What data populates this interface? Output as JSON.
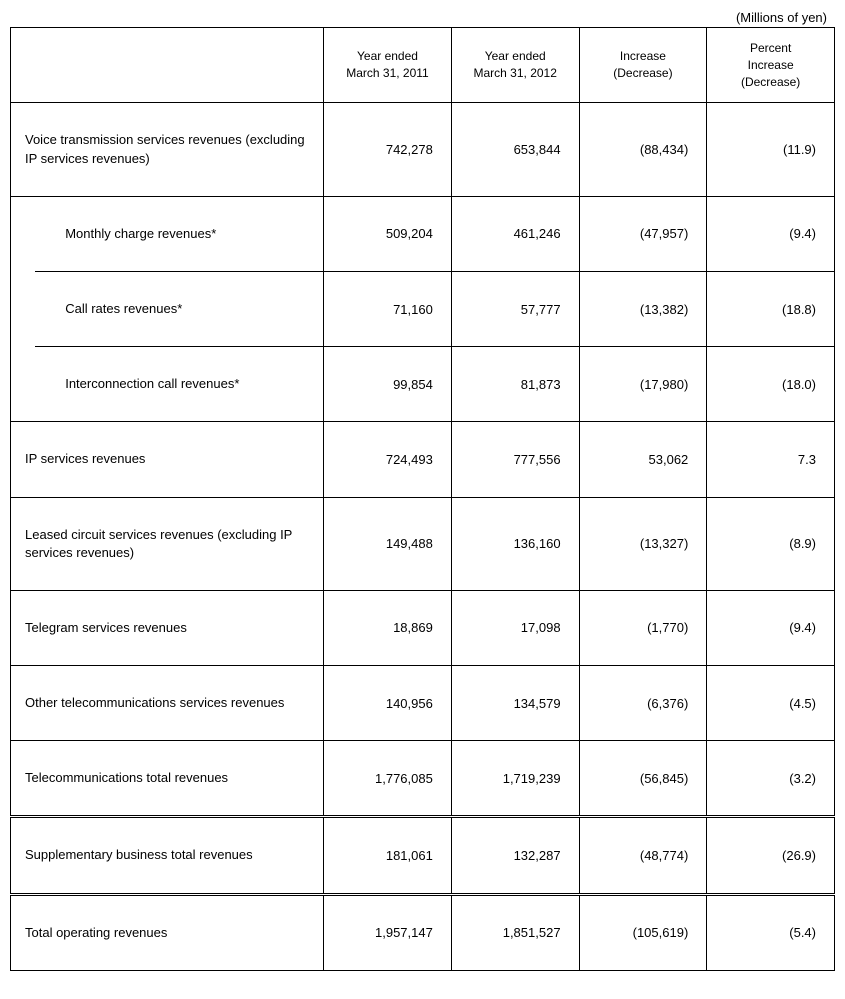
{
  "unit_label": "(Millions of yen)",
  "columns": {
    "c1": "Year ended\nMarch 31, 2011",
    "c2": "Year ended\nMarch 31, 2012",
    "c3": "Increase\n(Decrease)",
    "c4": "Percent\nIncrease\n(Decrease)"
  },
  "rows": {
    "r0": {
      "label": "Voice transmission services revenues (excluding IP services revenues)",
      "v1": "742,278",
      "v2": "653,844",
      "v3": "(88,434)",
      "v4": "(11.9)"
    },
    "r1": {
      "label": "Monthly charge revenues*",
      "v1": "509,204",
      "v2": "461,246",
      "v3": "(47,957)",
      "v4": "(9.4)"
    },
    "r2": {
      "label": "Call rates revenues*",
      "v1": "71,160",
      "v2": "57,777",
      "v3": "(13,382)",
      "v4": "(18.8)"
    },
    "r3": {
      "label": "Interconnection call revenues*",
      "v1": "99,854",
      "v2": "81,873",
      "v3": "(17,980)",
      "v4": "(18.0)"
    },
    "r4": {
      "label": "IP services revenues",
      "v1": "724,493",
      "v2": "777,556",
      "v3": "53,062",
      "v4": "7.3"
    },
    "r5": {
      "label": "Leased circuit services revenues (excluding IP services revenues)",
      "v1": "149,488",
      "v2": "136,160",
      "v3": "(13,327)",
      "v4": "(8.9)"
    },
    "r6": {
      "label": "Telegram services revenues",
      "v1": "18,869",
      "v2": "17,098",
      "v3": "(1,770)",
      "v4": "(9.4)"
    },
    "r7": {
      "label": "Other telecommunications services revenues",
      "v1": "140,956",
      "v2": "134,579",
      "v3": "(6,376)",
      "v4": "(4.5)"
    },
    "r8": {
      "label": "Telecommunications total revenues",
      "v1": "1,776,085",
      "v2": "1,719,239",
      "v3": "(56,845)",
      "v4": "(3.2)"
    },
    "r9": {
      "label": "Supplementary business total revenues",
      "v1": "181,061",
      "v2": "132,287",
      "v3": "(48,774)",
      "v4": "(26.9)"
    },
    "r10": {
      "label": "Total operating revenues",
      "v1": "1,957,147",
      "v2": "1,851,527",
      "v3": "(105,619)",
      "v4": "(5.4)"
    }
  }
}
